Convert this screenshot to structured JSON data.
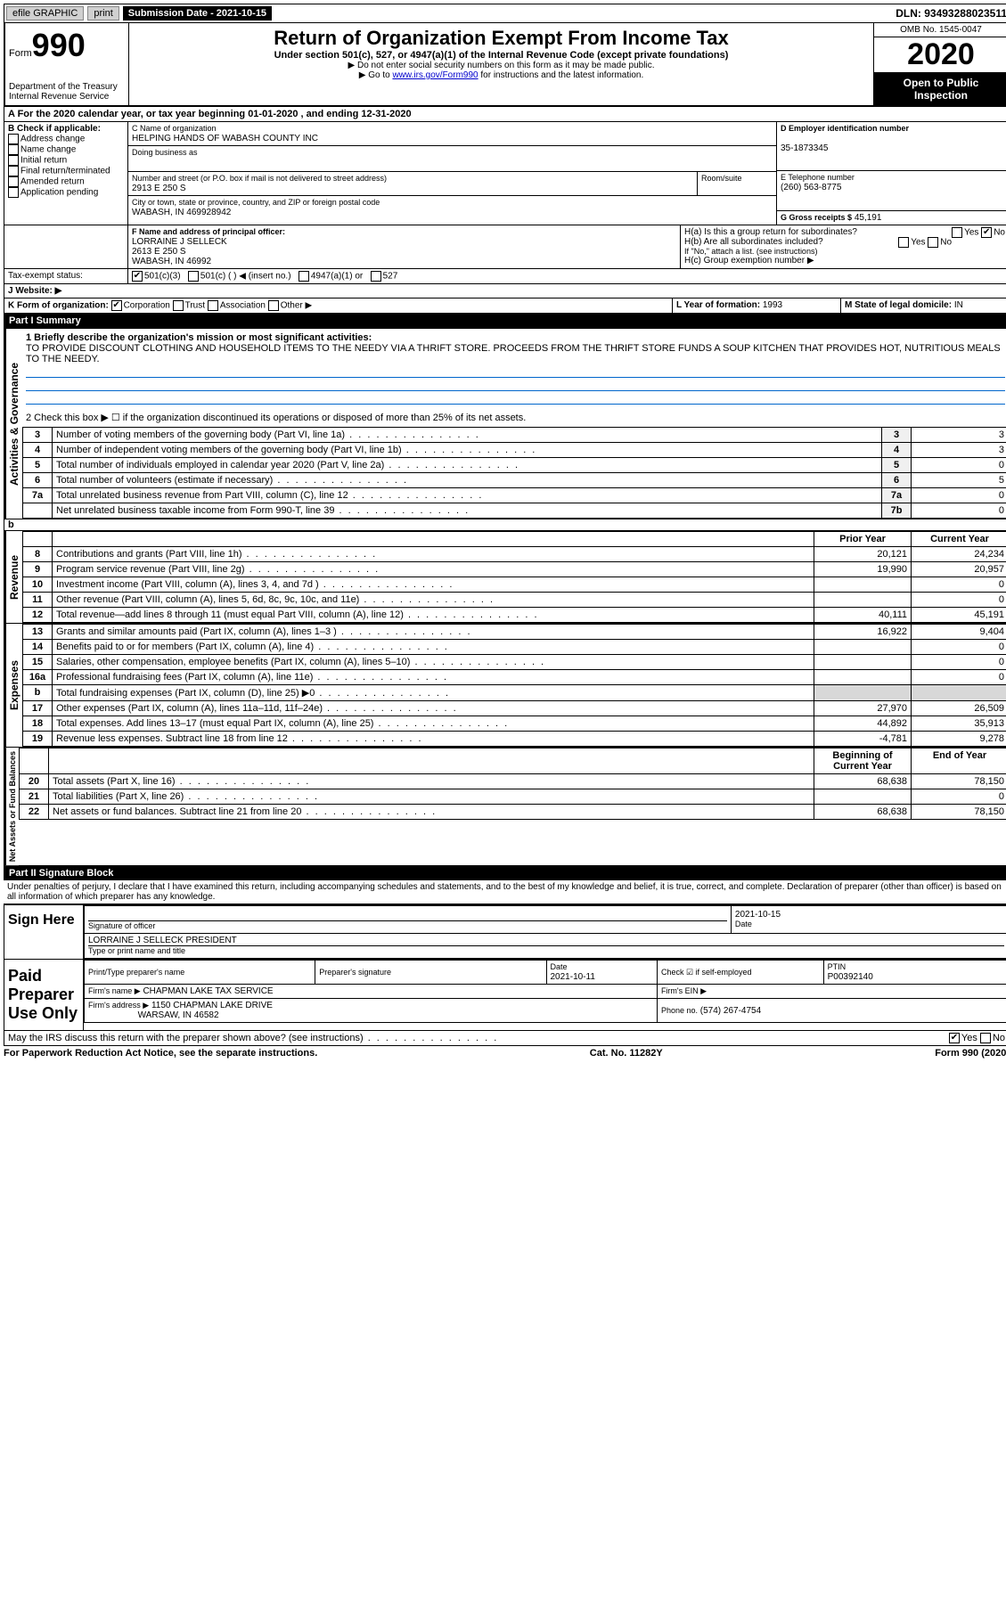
{
  "topbar": {
    "efile": "efile GRAPHIC",
    "print": "print",
    "submission_label": "Submission Date - 2021-10-15",
    "dln": "DLN: 93493288023511"
  },
  "header": {
    "form_prefix": "Form",
    "form_number": "990",
    "dept": "Department of the Treasury\nInternal Revenue Service",
    "title": "Return of Organization Exempt From Income Tax",
    "subtitle": "Under section 501(c), 527, or 4947(a)(1) of the Internal Revenue Code (except private foundations)",
    "note1": "▶ Do not enter social security numbers on this form as it may be made public.",
    "note2_prefix": "▶ Go to ",
    "note2_link": "www.irs.gov/Form990",
    "note2_suffix": " for instructions and the latest information.",
    "omb": "OMB No. 1545-0047",
    "year": "2020",
    "open": "Open to Public Inspection"
  },
  "taxyear": "A For the 2020 calendar year, or tax year beginning 01-01-2020     , and ending 12-31-2020",
  "boxB": {
    "label": "B Check if applicable:",
    "opts": [
      "Address change",
      "Name change",
      "Initial return",
      "Final return/terminated",
      "Amended return",
      "Application pending"
    ]
  },
  "boxC": {
    "name_label": "C Name of organization",
    "name": "HELPING HANDS OF WABASH COUNTY INC",
    "dba_label": "Doing business as",
    "street_label": "Number and street (or P.O. box if mail is not delivered to street address)",
    "room_label": "Room/suite",
    "street": "2913 E 250 S",
    "city_label": "City or town, state or province, country, and ZIP or foreign postal code",
    "city": "WABASH, IN  469928942"
  },
  "boxD": {
    "label": "D Employer identification number",
    "value": "35-1873345"
  },
  "boxE": {
    "label": "E Telephone number",
    "value": "(260) 563-8775"
  },
  "boxG": {
    "label": "G Gross receipts $",
    "value": "45,191"
  },
  "boxF": {
    "label": "F  Name and address of principal officer:",
    "name": "LORRAINE J SELLECK",
    "street": "2613 E 250 S",
    "city": "WABASH, IN  46992"
  },
  "boxH": {
    "a": "H(a)  Is this a group return for subordinates?",
    "b": "H(b)  Are all subordinates included?",
    "b_note": "If \"No,\" attach a list. (see instructions)",
    "c": "H(c)  Group exemption number ▶",
    "yes": "Yes",
    "no": "No"
  },
  "boxI": {
    "label": "Tax-exempt status:",
    "501c3": "501(c)(3)",
    "501c": "501(c) (   ) ◀ (insert no.)",
    "4947": "4947(a)(1) or",
    "527": "527"
  },
  "boxJ": {
    "label": "J    Website: ▶"
  },
  "boxK": {
    "label": "K Form of organization:",
    "corp": "Corporation",
    "trust": "Trust",
    "assoc": "Association",
    "other": "Other ▶"
  },
  "boxL": {
    "label": "L Year of formation:",
    "value": "1993"
  },
  "boxM": {
    "label": "M State of legal domicile:",
    "value": "IN"
  },
  "partI": {
    "header": "Part I      Summary",
    "line1_label": "1  Briefly describe the organization's mission or most significant activities:",
    "mission": "TO PROVIDE DISCOUNT CLOTHING AND HOUSEHOLD ITEMS TO THE NEEDY VIA A THRIFT STORE. PROCEEDS FROM THE THRIFT STORE FUNDS A SOUP KITCHEN THAT PROVIDES HOT, NUTRITIOUS MEALS TO THE NEEDY.",
    "line2": "2   Check this box ▶ ☐ if the organization discontinued its operations or disposed of more than 25% of its net assets.",
    "sections": {
      "gov": "Activities & Governance",
      "rev": "Revenue",
      "exp": "Expenses",
      "net": "Net Assets or Fund Balances"
    },
    "col_prior": "Prior Year",
    "col_current": "Current Year",
    "col_begin": "Beginning of Current Year",
    "col_end": "End of Year",
    "rows_gov": [
      {
        "n": "3",
        "t": "Number of voting members of the governing body (Part VI, line 1a)",
        "box": "3",
        "v": "3"
      },
      {
        "n": "4",
        "t": "Number of independent voting members of the governing body (Part VI, line 1b)",
        "box": "4",
        "v": "3"
      },
      {
        "n": "5",
        "t": "Total number of individuals employed in calendar year 2020 (Part V, line 2a)",
        "box": "5",
        "v": "0"
      },
      {
        "n": "6",
        "t": "Total number of volunteers (estimate if necessary)",
        "box": "6",
        "v": "5"
      },
      {
        "n": "7a",
        "t": "Total unrelated business revenue from Part VIII, column (C), line 12",
        "box": "7a",
        "v": "0"
      },
      {
        "n": "",
        "t": "Net unrelated business taxable income from Form 990-T, line 39",
        "box": "7b",
        "v": "0"
      }
    ],
    "rows_rev": [
      {
        "n": "8",
        "t": "Contributions and grants (Part VIII, line 1h)",
        "p": "20,121",
        "c": "24,234"
      },
      {
        "n": "9",
        "t": "Program service revenue (Part VIII, line 2g)",
        "p": "19,990",
        "c": "20,957"
      },
      {
        "n": "10",
        "t": "Investment income (Part VIII, column (A), lines 3, 4, and 7d )",
        "p": "",
        "c": "0"
      },
      {
        "n": "11",
        "t": "Other revenue (Part VIII, column (A), lines 5, 6d, 8c, 9c, 10c, and 11e)",
        "p": "",
        "c": "0"
      },
      {
        "n": "12",
        "t": "Total revenue—add lines 8 through 11 (must equal Part VIII, column (A), line 12)",
        "p": "40,111",
        "c": "45,191"
      }
    ],
    "rows_exp": [
      {
        "n": "13",
        "t": "Grants and similar amounts paid (Part IX, column (A), lines 1–3 )",
        "p": "16,922",
        "c": "9,404"
      },
      {
        "n": "14",
        "t": "Benefits paid to or for members (Part IX, column (A), line 4)",
        "p": "",
        "c": "0"
      },
      {
        "n": "15",
        "t": "Salaries, other compensation, employee benefits (Part IX, column (A), lines 5–10)",
        "p": "",
        "c": "0"
      },
      {
        "n": "16a",
        "t": "Professional fundraising fees (Part IX, column (A), line 11e)",
        "p": "",
        "c": "0"
      },
      {
        "n": "b",
        "t": "Total fundraising expenses (Part IX, column (D), line 25) ▶0",
        "p": "shaded",
        "c": "shaded"
      },
      {
        "n": "17",
        "t": "Other expenses (Part IX, column (A), lines 11a–11d, 11f–24e)",
        "p": "27,970",
        "c": "26,509"
      },
      {
        "n": "18",
        "t": "Total expenses. Add lines 13–17 (must equal Part IX, column (A), line 25)",
        "p": "44,892",
        "c": "35,913"
      },
      {
        "n": "19",
        "t": "Revenue less expenses. Subtract line 18 from line 12",
        "p": "-4,781",
        "c": "9,278"
      }
    ],
    "rows_net": [
      {
        "n": "20",
        "t": "Total assets (Part X, line 16)",
        "p": "68,638",
        "c": "78,150"
      },
      {
        "n": "21",
        "t": "Total liabilities (Part X, line 26)",
        "p": "",
        "c": "0"
      },
      {
        "n": "22",
        "t": "Net assets or fund balances. Subtract line 21 from line 20",
        "p": "68,638",
        "c": "78,150"
      }
    ]
  },
  "partII": {
    "header": "Part II     Signature Block",
    "decl": "Under penalties of perjury, I declare that I have examined this return, including accompanying schedules and statements, and to the best of my knowledge and belief, it is true, correct, and complete. Declaration of preparer (other than officer) is based on all information of which preparer has any knowledge.",
    "sign_here": "Sign Here",
    "sig_officer": "Signature of officer",
    "date": "Date",
    "date_v": "2021-10-15",
    "name_title": "LORRAINE J SELLECK  PRESIDENT",
    "name_title_label": "Type or print name and title",
    "paid": "Paid Preparer Use Only",
    "prep_name_label": "Print/Type preparer's name",
    "prep_sig_label": "Preparer's signature",
    "prep_date_label": "Date",
    "prep_date": "2021-10-11",
    "check_self": "Check ☑ if self-employed",
    "ptin_label": "PTIN",
    "ptin": "P00392140",
    "firm_name_label": "Firm's name     ▶",
    "firm_name": "CHAPMAN LAKE TAX SERVICE",
    "firm_ein_label": "Firm's EIN ▶",
    "firm_addr_label": "Firm's address ▶",
    "firm_addr1": "1150 CHAPMAN LAKE DRIVE",
    "firm_addr2": "WARSAW, IN  46582",
    "phone_label": "Phone no.",
    "phone": "(574) 267-4754",
    "discuss": "May the IRS discuss this return with the preparer shown above? (see instructions)",
    "yes": "Yes",
    "no": "No"
  },
  "footer": {
    "left": "For Paperwork Reduction Act Notice, see the separate instructions.",
    "center": "Cat. No. 11282Y",
    "right": "Form 990 (2020)"
  }
}
